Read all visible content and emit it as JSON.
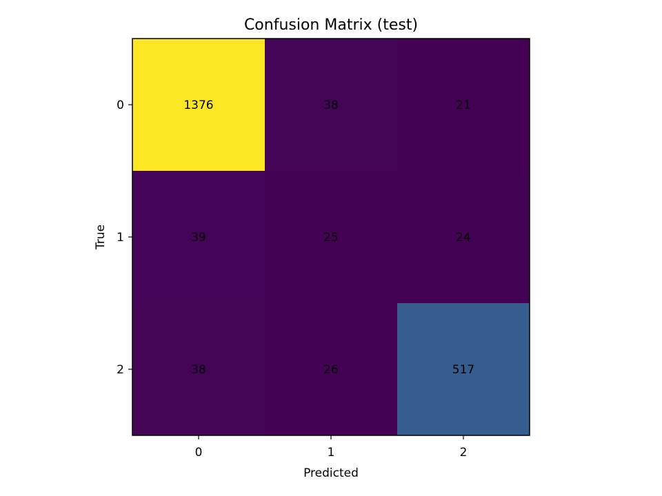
{
  "chart_data": {
    "type": "heatmap",
    "title": "Confusion Matrix (test)",
    "xlabel": "Predicted",
    "ylabel": "True",
    "x_categories": [
      "0",
      "1",
      "2"
    ],
    "y_categories": [
      "0",
      "1",
      "2"
    ],
    "matrix": [
      [
        1376,
        38,
        21
      ],
      [
        39,
        25,
        24
      ],
      [
        38,
        26,
        517
      ]
    ],
    "colormap": "viridis",
    "color_range": [
      21,
      1376
    ],
    "grid": false
  }
}
